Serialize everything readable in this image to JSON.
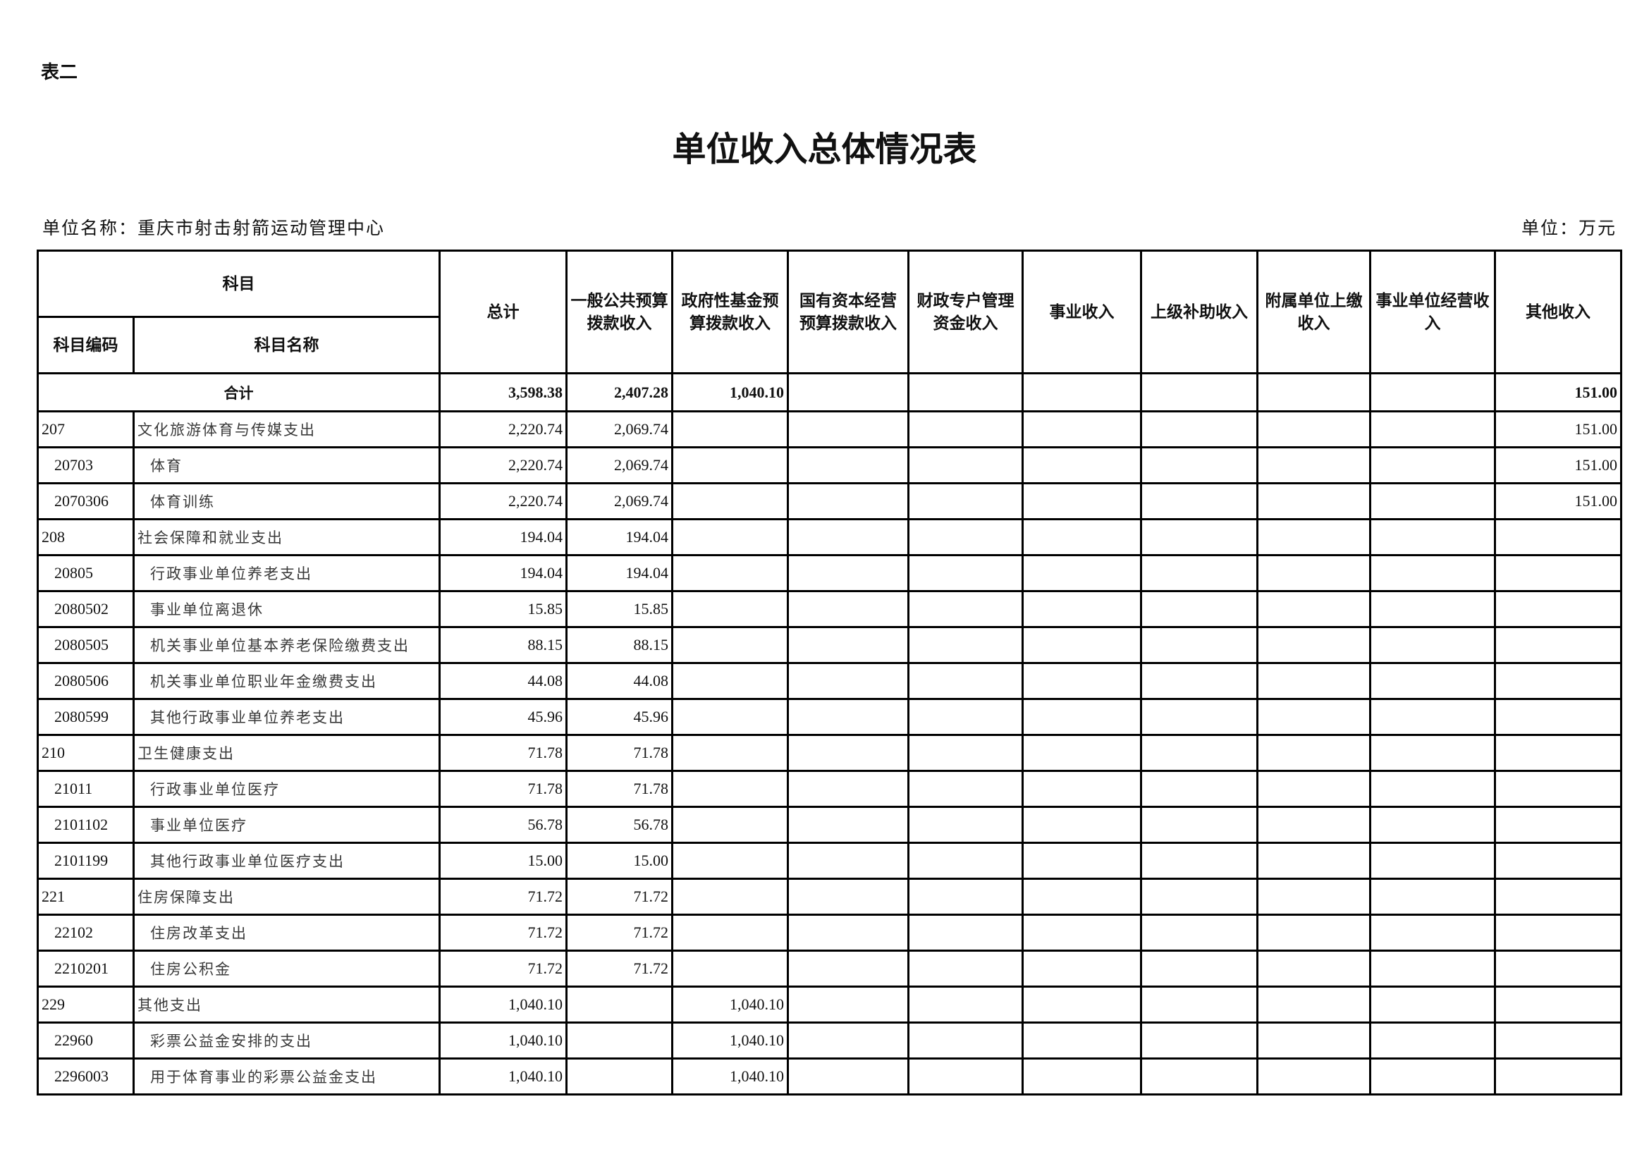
{
  "doc_label": "表二",
  "title": "单位收入总体情况表",
  "unit_name": "单位名称：重庆市射击射箭运动管理中心",
  "unit": "单位：万元",
  "header": {
    "subject": "科目",
    "code": "科目编码",
    "name": "科目名称",
    "columns": [
      "总计",
      "一般公共预算拨款收入",
      "政府性基金预算拨款收入",
      "国有资本经营预算拨款收入",
      "财政专户管理资金收入",
      "事业收入",
      "上级补助收入",
      "附属单位上缴收入",
      "事业单位经营收入",
      "其他收入"
    ]
  },
  "total": {
    "label": "合计",
    "values": [
      "3,598.38",
      "2,407.28",
      "1,040.10",
      "",
      "",
      "",
      "",
      "",
      "",
      "151.00"
    ]
  },
  "rows": [
    {
      "code": "207",
      "name": "文化旅游体育与传媒支出",
      "level": 1,
      "values": [
        "2,220.74",
        "2,069.74",
        "",
        "",
        "",
        "",
        "",
        "",
        "",
        "151.00"
      ]
    },
    {
      "code": "20703",
      "name": "体育",
      "level": 2,
      "values": [
        "2,220.74",
        "2,069.74",
        "",
        "",
        "",
        "",
        "",
        "",
        "",
        "151.00"
      ]
    },
    {
      "code": "2070306",
      "name": "体育训练",
      "level": 2,
      "values": [
        "2,220.74",
        "2,069.74",
        "",
        "",
        "",
        "",
        "",
        "",
        "",
        "151.00"
      ]
    },
    {
      "code": "208",
      "name": "社会保障和就业支出",
      "level": 1,
      "values": [
        "194.04",
        "194.04",
        "",
        "",
        "",
        "",
        "",
        "",
        "",
        ""
      ]
    },
    {
      "code": "20805",
      "name": "行政事业单位养老支出",
      "level": 2,
      "values": [
        "194.04",
        "194.04",
        "",
        "",
        "",
        "",
        "",
        "",
        "",
        ""
      ]
    },
    {
      "code": "2080502",
      "name": "事业单位离退休",
      "level": 2,
      "values": [
        "15.85",
        "15.85",
        "",
        "",
        "",
        "",
        "",
        "",
        "",
        ""
      ]
    },
    {
      "code": "2080505",
      "name": "机关事业单位基本养老保险缴费支出",
      "level": 2,
      "values": [
        "88.15",
        "88.15",
        "",
        "",
        "",
        "",
        "",
        "",
        "",
        ""
      ]
    },
    {
      "code": "2080506",
      "name": "机关事业单位职业年金缴费支出",
      "level": 2,
      "values": [
        "44.08",
        "44.08",
        "",
        "",
        "",
        "",
        "",
        "",
        "",
        ""
      ]
    },
    {
      "code": "2080599",
      "name": "其他行政事业单位养老支出",
      "level": 2,
      "values": [
        "45.96",
        "45.96",
        "",
        "",
        "",
        "",
        "",
        "",
        "",
        ""
      ]
    },
    {
      "code": "210",
      "name": "卫生健康支出",
      "level": 1,
      "values": [
        "71.78",
        "71.78",
        "",
        "",
        "",
        "",
        "",
        "",
        "",
        ""
      ]
    },
    {
      "code": "21011",
      "name": "行政事业单位医疗",
      "level": 2,
      "values": [
        "71.78",
        "71.78",
        "",
        "",
        "",
        "",
        "",
        "",
        "",
        ""
      ]
    },
    {
      "code": "2101102",
      "name": "事业单位医疗",
      "level": 2,
      "values": [
        "56.78",
        "56.78",
        "",
        "",
        "",
        "",
        "",
        "",
        "",
        ""
      ]
    },
    {
      "code": "2101199",
      "name": "其他行政事业单位医疗支出",
      "level": 2,
      "values": [
        "15.00",
        "15.00",
        "",
        "",
        "",
        "",
        "",
        "",
        "",
        ""
      ]
    },
    {
      "code": "221",
      "name": "住房保障支出",
      "level": 1,
      "values": [
        "71.72",
        "71.72",
        "",
        "",
        "",
        "",
        "",
        "",
        "",
        ""
      ]
    },
    {
      "code": "22102",
      "name": "住房改革支出",
      "level": 2,
      "values": [
        "71.72",
        "71.72",
        "",
        "",
        "",
        "",
        "",
        "",
        "",
        ""
      ]
    },
    {
      "code": "2210201",
      "name": "住房公积金",
      "level": 2,
      "values": [
        "71.72",
        "71.72",
        "",
        "",
        "",
        "",
        "",
        "",
        "",
        ""
      ]
    },
    {
      "code": "229",
      "name": "其他支出",
      "level": 1,
      "values": [
        "1,040.10",
        "",
        "1,040.10",
        "",
        "",
        "",
        "",
        "",
        "",
        ""
      ]
    },
    {
      "code": "22960",
      "name": "彩票公益金安排的支出",
      "level": 2,
      "values": [
        "1,040.10",
        "",
        "1,040.10",
        "",
        "",
        "",
        "",
        "",
        "",
        ""
      ]
    },
    {
      "code": "2296003",
      "name": "用于体育事业的彩票公益金支出",
      "level": 2,
      "values": [
        "1,040.10",
        "",
        "1,040.10",
        "",
        "",
        "",
        "",
        "",
        "",
        ""
      ]
    }
  ]
}
